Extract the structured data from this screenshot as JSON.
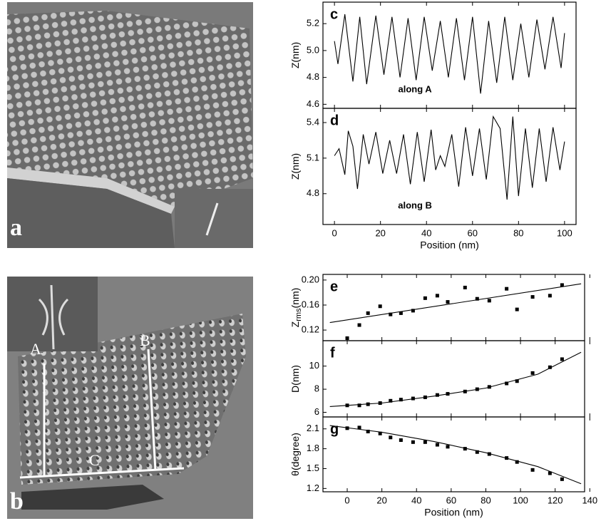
{
  "images": [
    {
      "label": "a"
    },
    {
      "label": "b",
      "line_labels": [
        "A",
        "B",
        "C"
      ]
    }
  ],
  "chart_data": [
    {
      "type": "line",
      "panel_label": "c",
      "ylabel": "Z(nm)",
      "annotation": "along A",
      "x": [
        0,
        1.5,
        4.5,
        8,
        11,
        14,
        18,
        21.5,
        25,
        28.5,
        32,
        35.5,
        39,
        42.5,
        46,
        49.5,
        53,
        56.5,
        60,
        63.5,
        67,
        70.5,
        74,
        77.5,
        81,
        84.5,
        88,
        91.5,
        95,
        98.5,
        100
      ],
      "values": [
        5.07,
        4.9,
        5.27,
        4.77,
        5.25,
        4.75,
        5.26,
        4.82,
        5.25,
        4.8,
        5.24,
        4.78,
        5.25,
        4.85,
        5.22,
        4.8,
        5.24,
        4.78,
        5.25,
        4.68,
        5.22,
        4.76,
        5.25,
        4.78,
        5.2,
        4.8,
        5.23,
        4.86,
        5.25,
        4.87,
        5.13
      ],
      "xlim": [
        -5,
        105
      ],
      "xticks": [
        0,
        20,
        40,
        60,
        80,
        100
      ],
      "ylim": [
        4.57,
        5.36
      ],
      "yticks": [
        4.6,
        4.8,
        {
          "value": 5.0,
          "label": "5.0"
        },
        5.2
      ]
    },
    {
      "type": "line",
      "panel_label": "d",
      "ylabel": "Z(nm)",
      "annotation": "along B",
      "xlabel": "Position (nm)",
      "x": [
        0,
        2,
        4.5,
        6,
        8,
        10,
        12.5,
        15,
        18,
        21,
        24,
        27,
        30,
        33,
        36,
        39,
        42,
        44,
        46,
        48,
        51,
        54,
        57,
        60,
        63,
        66,
        69,
        72,
        75,
        77.5,
        80,
        83,
        86,
        89,
        92,
        95,
        98,
        100
      ],
      "values": [
        5.12,
        5.18,
        4.96,
        5.33,
        5.2,
        4.84,
        5.3,
        5.05,
        5.32,
        4.97,
        5.25,
        4.97,
        5.3,
        4.88,
        5.32,
        4.9,
        5.34,
        5.0,
        5.12,
        5.03,
        5.3,
        4.86,
        5.36,
        4.95,
        5.35,
        4.92,
        5.45,
        5.35,
        4.75,
        5.45,
        4.78,
        5.35,
        4.85,
        5.35,
        4.9,
        5.36,
        5.0,
        5.24
      ],
      "xlim": [
        -5,
        105
      ],
      "xticks": [
        0,
        20,
        40,
        60,
        80,
        100
      ],
      "ylim": [
        4.54,
        5.52
      ],
      "yticks": [
        4.8,
        5.1,
        5.4
      ]
    },
    {
      "type": "scatter",
      "panel_label": "e",
      "ylabel": "Z",
      "ylabel_sub": "rms",
      "ylabel_suffix": "(nm)",
      "x": [
        0,
        7,
        12,
        19,
        25,
        31,
        38,
        45,
        52,
        58,
        68,
        75,
        82,
        92,
        98,
        107,
        117,
        124
      ],
      "values": [
        0.107,
        0.128,
        0.147,
        0.158,
        0.145,
        0.147,
        0.151,
        0.171,
        0.175,
        0.165,
        0.188,
        0.17,
        0.167,
        0.186,
        0.153,
        0.173,
        0.175,
        0.192
      ],
      "fit_x": [
        -10,
        135
      ],
      "fit_values": [
        0.132,
        0.194
      ],
      "xlim": [
        -14,
        137
      ],
      "xticks": [
        0,
        20,
        40,
        60,
        80,
        100,
        120,
        140
      ],
      "ylim": [
        0.103,
        0.209
      ],
      "yticks": [
        0.12,
        0.16,
        {
          "value": 0.2,
          "label": "0.20"
        }
      ]
    },
    {
      "type": "scatter",
      "panel_label": "f",
      "ylabel": "D(nm)",
      "x": [
        0,
        7,
        12,
        19,
        25,
        31,
        38,
        45,
        52,
        58,
        68,
        75,
        82,
        92,
        98,
        107,
        117,
        124
      ],
      "values": [
        6.6,
        6.6,
        6.7,
        6.8,
        7.0,
        7.1,
        7.2,
        7.3,
        7.5,
        7.6,
        7.8,
        8.0,
        8.2,
        8.5,
        8.7,
        9.4,
        9.9,
        10.6
      ],
      "fit_x": [
        -10,
        20,
        50,
        80,
        110,
        135
      ],
      "fit_values": [
        6.5,
        6.8,
        7.4,
        8.1,
        9.3,
        11.2
      ],
      "xlim": [
        -14,
        137
      ],
      "xticks": [
        0,
        20,
        40,
        60,
        80,
        100,
        120,
        140
      ],
      "ylim": [
        5.6,
        12.2
      ],
      "yticks": [
        6,
        8,
        10
      ]
    },
    {
      "type": "scatter",
      "panel_label": "g",
      "ylabel": "θ(degree)",
      "xlabel": "Position (nm)",
      "x": [
        0,
        7,
        12,
        19,
        25,
        31,
        38,
        45,
        52,
        58,
        68,
        75,
        82,
        92,
        98,
        107,
        117,
        124
      ],
      "values": [
        2.11,
        2.12,
        2.06,
        2.03,
        1.97,
        1.93,
        1.9,
        1.9,
        1.86,
        1.83,
        1.8,
        1.75,
        1.72,
        1.66,
        1.6,
        1.48,
        1.43,
        1.34
      ],
      "fit_x": [
        -10,
        20,
        50,
        80,
        110,
        135
      ],
      "fit_values": [
        2.15,
        2.05,
        1.91,
        1.74,
        1.53,
        1.27
      ],
      "xlim": [
        -14,
        137
      ],
      "xticks": [
        0,
        20,
        40,
        60,
        80,
        100,
        120,
        140
      ],
      "ylim": [
        1.15,
        2.28
      ],
      "yticks": [
        1.2,
        1.5,
        1.8,
        2.1
      ]
    }
  ]
}
